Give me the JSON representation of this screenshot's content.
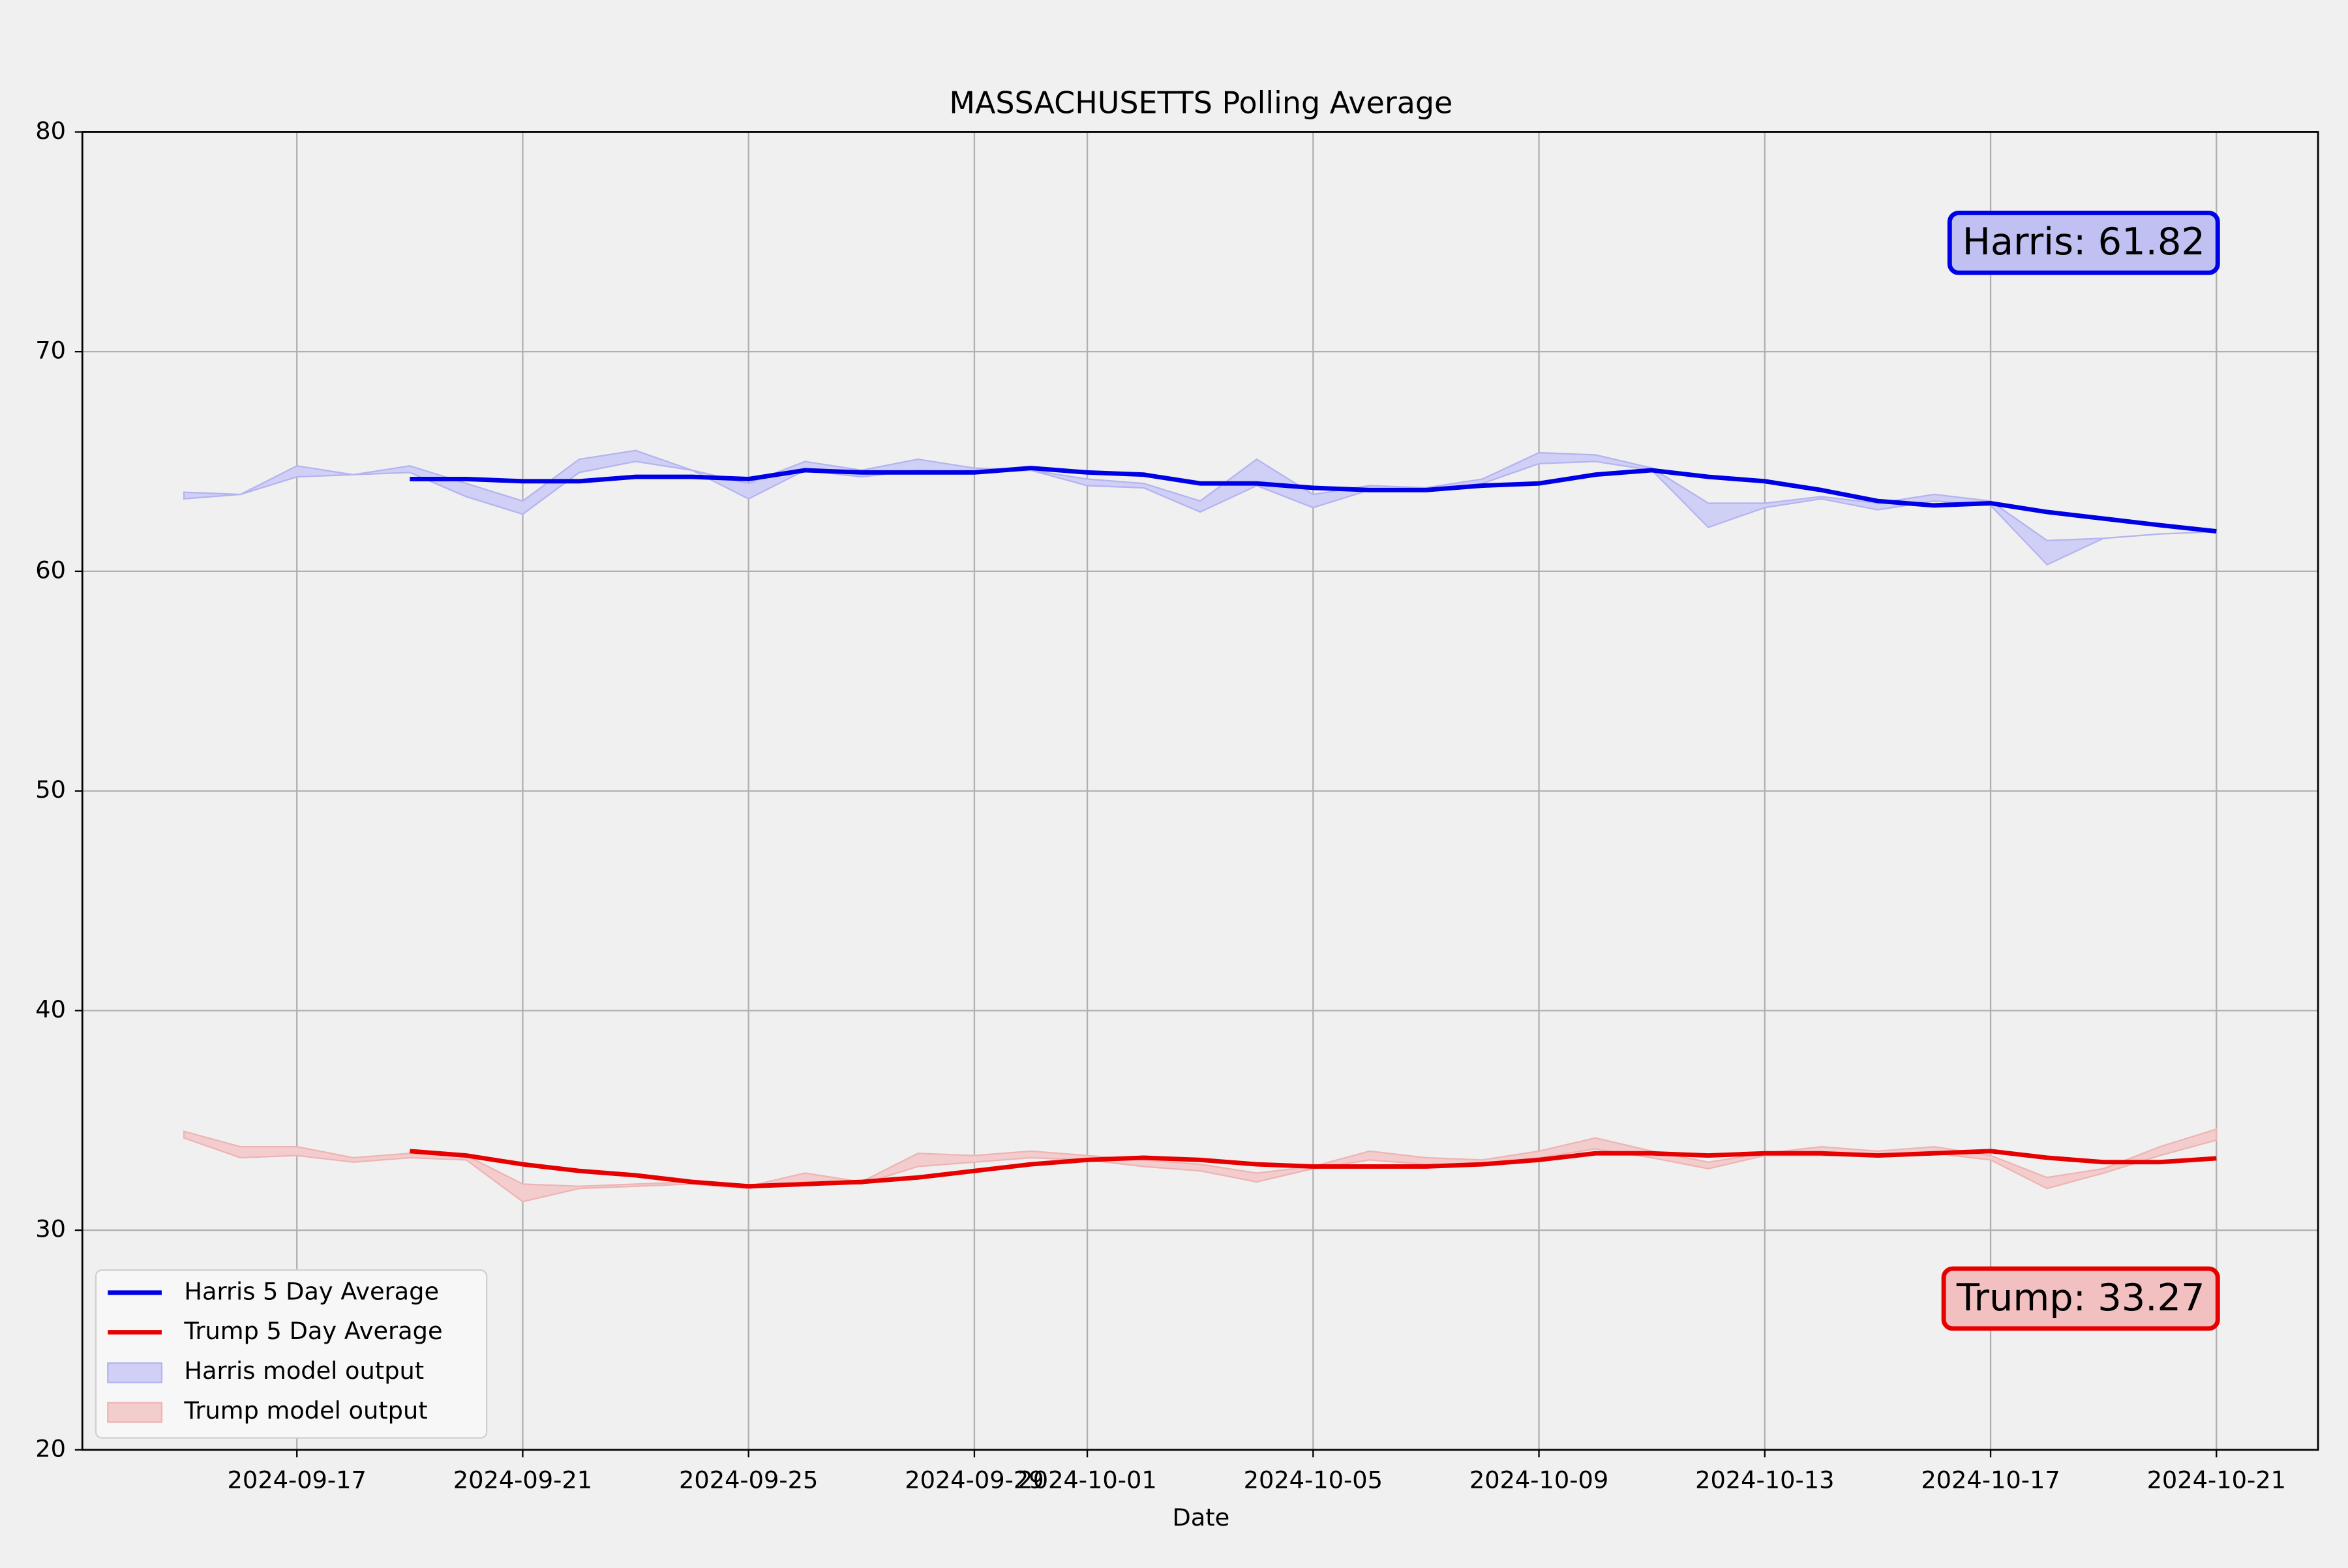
{
  "chart_data": {
    "type": "line",
    "title": "MASSACHUSETTS Polling Average",
    "xlabel": "Date",
    "x": [
      "2024-09-15",
      "2024-09-16",
      "2024-09-17",
      "2024-09-18",
      "2024-09-19",
      "2024-09-20",
      "2024-09-21",
      "2024-09-22",
      "2024-09-23",
      "2024-09-24",
      "2024-09-25",
      "2024-09-26",
      "2024-09-27",
      "2024-09-28",
      "2024-09-29",
      "2024-09-30",
      "2024-10-01",
      "2024-10-02",
      "2024-10-03",
      "2024-10-04",
      "2024-10-05",
      "2024-10-06",
      "2024-10-07",
      "2024-10-08",
      "2024-10-09",
      "2024-10-10",
      "2024-10-11",
      "2024-10-12",
      "2024-10-13",
      "2024-10-14",
      "2024-10-15",
      "2024-10-16",
      "2024-10-17",
      "2024-10-18",
      "2024-10-19",
      "2024-10-20",
      "2024-10-21"
    ],
    "series": [
      {
        "name": "Harris 5 Day Average",
        "color": "#0000e6",
        "values": [
          null,
          null,
          null,
          null,
          64.2,
          64.2,
          64.1,
          64.1,
          64.3,
          64.3,
          64.2,
          64.6,
          64.5,
          64.5,
          64.5,
          64.7,
          64.5,
          64.4,
          64.0,
          64.0,
          63.8,
          63.7,
          63.7,
          63.9,
          64.0,
          64.4,
          64.6,
          64.3,
          64.1,
          63.7,
          63.2,
          63.0,
          63.1,
          62.7,
          62.4,
          62.1,
          61.82
        ]
      },
      {
        "name": "Trump 5 Day Average",
        "color": "#e60000",
        "values": [
          null,
          null,
          null,
          null,
          33.6,
          33.4,
          33.0,
          32.7,
          32.5,
          32.2,
          32.0,
          32.1,
          32.2,
          32.4,
          32.7,
          33.0,
          33.2,
          33.3,
          33.2,
          33.0,
          32.9,
          32.9,
          32.9,
          33.0,
          33.2,
          33.5,
          33.5,
          33.4,
          33.5,
          33.5,
          33.4,
          33.5,
          33.6,
          33.3,
          33.1,
          33.1,
          33.27
        ]
      }
    ],
    "bands": [
      {
        "name": "Harris model output",
        "color": "#d0d0f6",
        "edge": "#b4b4f0",
        "lower": [
          63.3,
          63.5,
          64.3,
          64.4,
          64.5,
          63.4,
          62.6,
          64.5,
          65.0,
          64.6,
          63.3,
          64.6,
          64.3,
          64.6,
          64.5,
          64.6,
          63.9,
          63.8,
          62.7,
          63.9,
          62.9,
          63.7,
          63.7,
          64.0,
          64.9,
          65.0,
          64.6,
          62.0,
          62.9,
          63.3,
          62.8,
          63.2,
          63.0,
          60.3,
          61.5,
          61.7,
          61.8
        ],
        "upper": [
          63.6,
          63.5,
          64.8,
          64.4,
          64.8,
          64.0,
          63.2,
          65.1,
          65.5,
          64.6,
          64.0,
          65.0,
          64.6,
          65.1,
          64.7,
          64.6,
          64.2,
          64.0,
          63.2,
          65.1,
          63.5,
          63.9,
          63.8,
          64.2,
          65.4,
          65.3,
          64.7,
          63.1,
          63.1,
          63.4,
          63.1,
          63.5,
          63.2,
          61.4,
          61.5,
          61.7,
          61.8
        ]
      },
      {
        "name": "Trump model output",
        "color": "#f3cdcd",
        "edge": "#eeb4b4",
        "lower": [
          34.2,
          33.3,
          33.4,
          33.1,
          33.3,
          33.2,
          31.3,
          31.9,
          32.0,
          32.1,
          31.9,
          32.2,
          32.1,
          32.9,
          33.1,
          33.3,
          33.2,
          32.9,
          32.7,
          32.2,
          32.8,
          33.2,
          33.0,
          33.0,
          33.3,
          33.7,
          33.3,
          32.8,
          33.4,
          33.4,
          33.4,
          33.5,
          33.2,
          31.9,
          32.6,
          33.4,
          34.1
        ],
        "upper": [
          34.5,
          33.8,
          33.8,
          33.3,
          33.5,
          33.4,
          32.1,
          32.0,
          32.1,
          32.2,
          32.0,
          32.6,
          32.2,
          33.5,
          33.4,
          33.6,
          33.4,
          33.2,
          33.0,
          32.6,
          32.9,
          33.6,
          33.3,
          33.2,
          33.6,
          34.2,
          33.6,
          33.1,
          33.5,
          33.8,
          33.6,
          33.8,
          33.4,
          32.4,
          32.8,
          33.8,
          34.6
        ]
      }
    ],
    "annotations": [
      "Harris: 61.82",
      "Trump: 33.27"
    ],
    "xlim": [
      "2024-09-13T04:48:00Z",
      "2024-10-22T19:12:00Z"
    ],
    "xticks": [
      "2024-09-17",
      "2024-09-21",
      "2024-09-25",
      "2024-09-29",
      "2024-10-01",
      "2024-10-05",
      "2024-10-09",
      "2024-10-13",
      "2024-10-17",
      "2024-10-21"
    ],
    "ylim": [
      20,
      80
    ],
    "yticks": [
      20,
      30,
      40,
      50,
      60,
      70,
      80
    ],
    "grid": true,
    "legend": "lower left"
  }
}
